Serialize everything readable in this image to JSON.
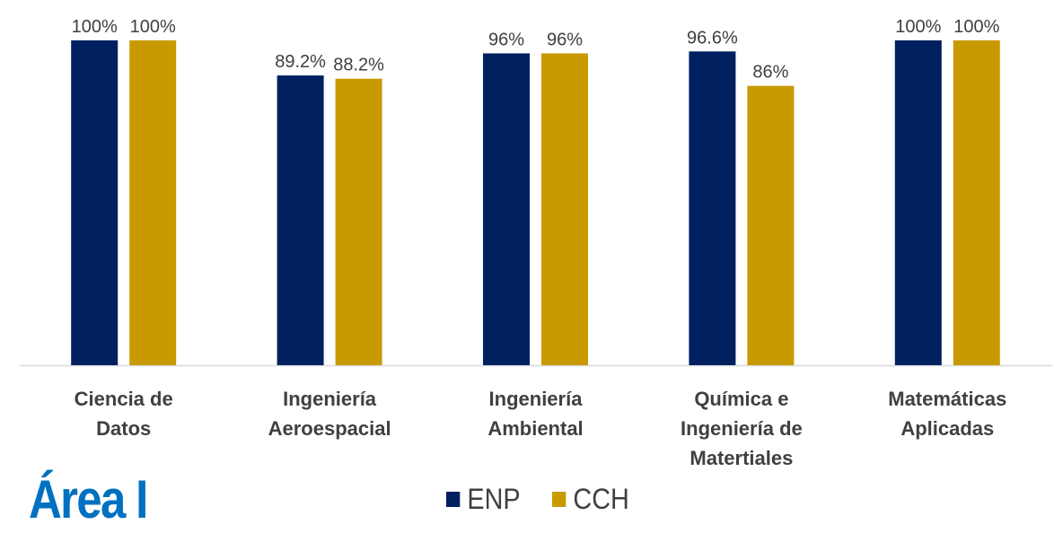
{
  "chart_data": {
    "type": "bar",
    "title": "Área I",
    "categories": [
      "Ciencia de\nDatos",
      "Ingeniería\nAeroespacial",
      "Ingeniería\nAmbiental",
      "Química e\nIngeniería de\nMatertiales",
      "Matemáticas\nAplicadas"
    ],
    "series": [
      {
        "name": "ENP",
        "color": "#002060",
        "values": [
          100,
          89.2,
          96,
          96.6,
          100
        ],
        "value_labels": [
          "100%",
          "89.2%",
          "96%",
          "96.6%",
          "100%"
        ]
      },
      {
        "name": "CCH",
        "color": "#c99a00",
        "values": [
          100,
          88.2,
          96,
          86,
          100
        ],
        "value_labels": [
          "100%",
          "88.2%",
          "96%",
          "86%",
          "100%"
        ]
      }
    ],
    "legend": "bottom"
  }
}
